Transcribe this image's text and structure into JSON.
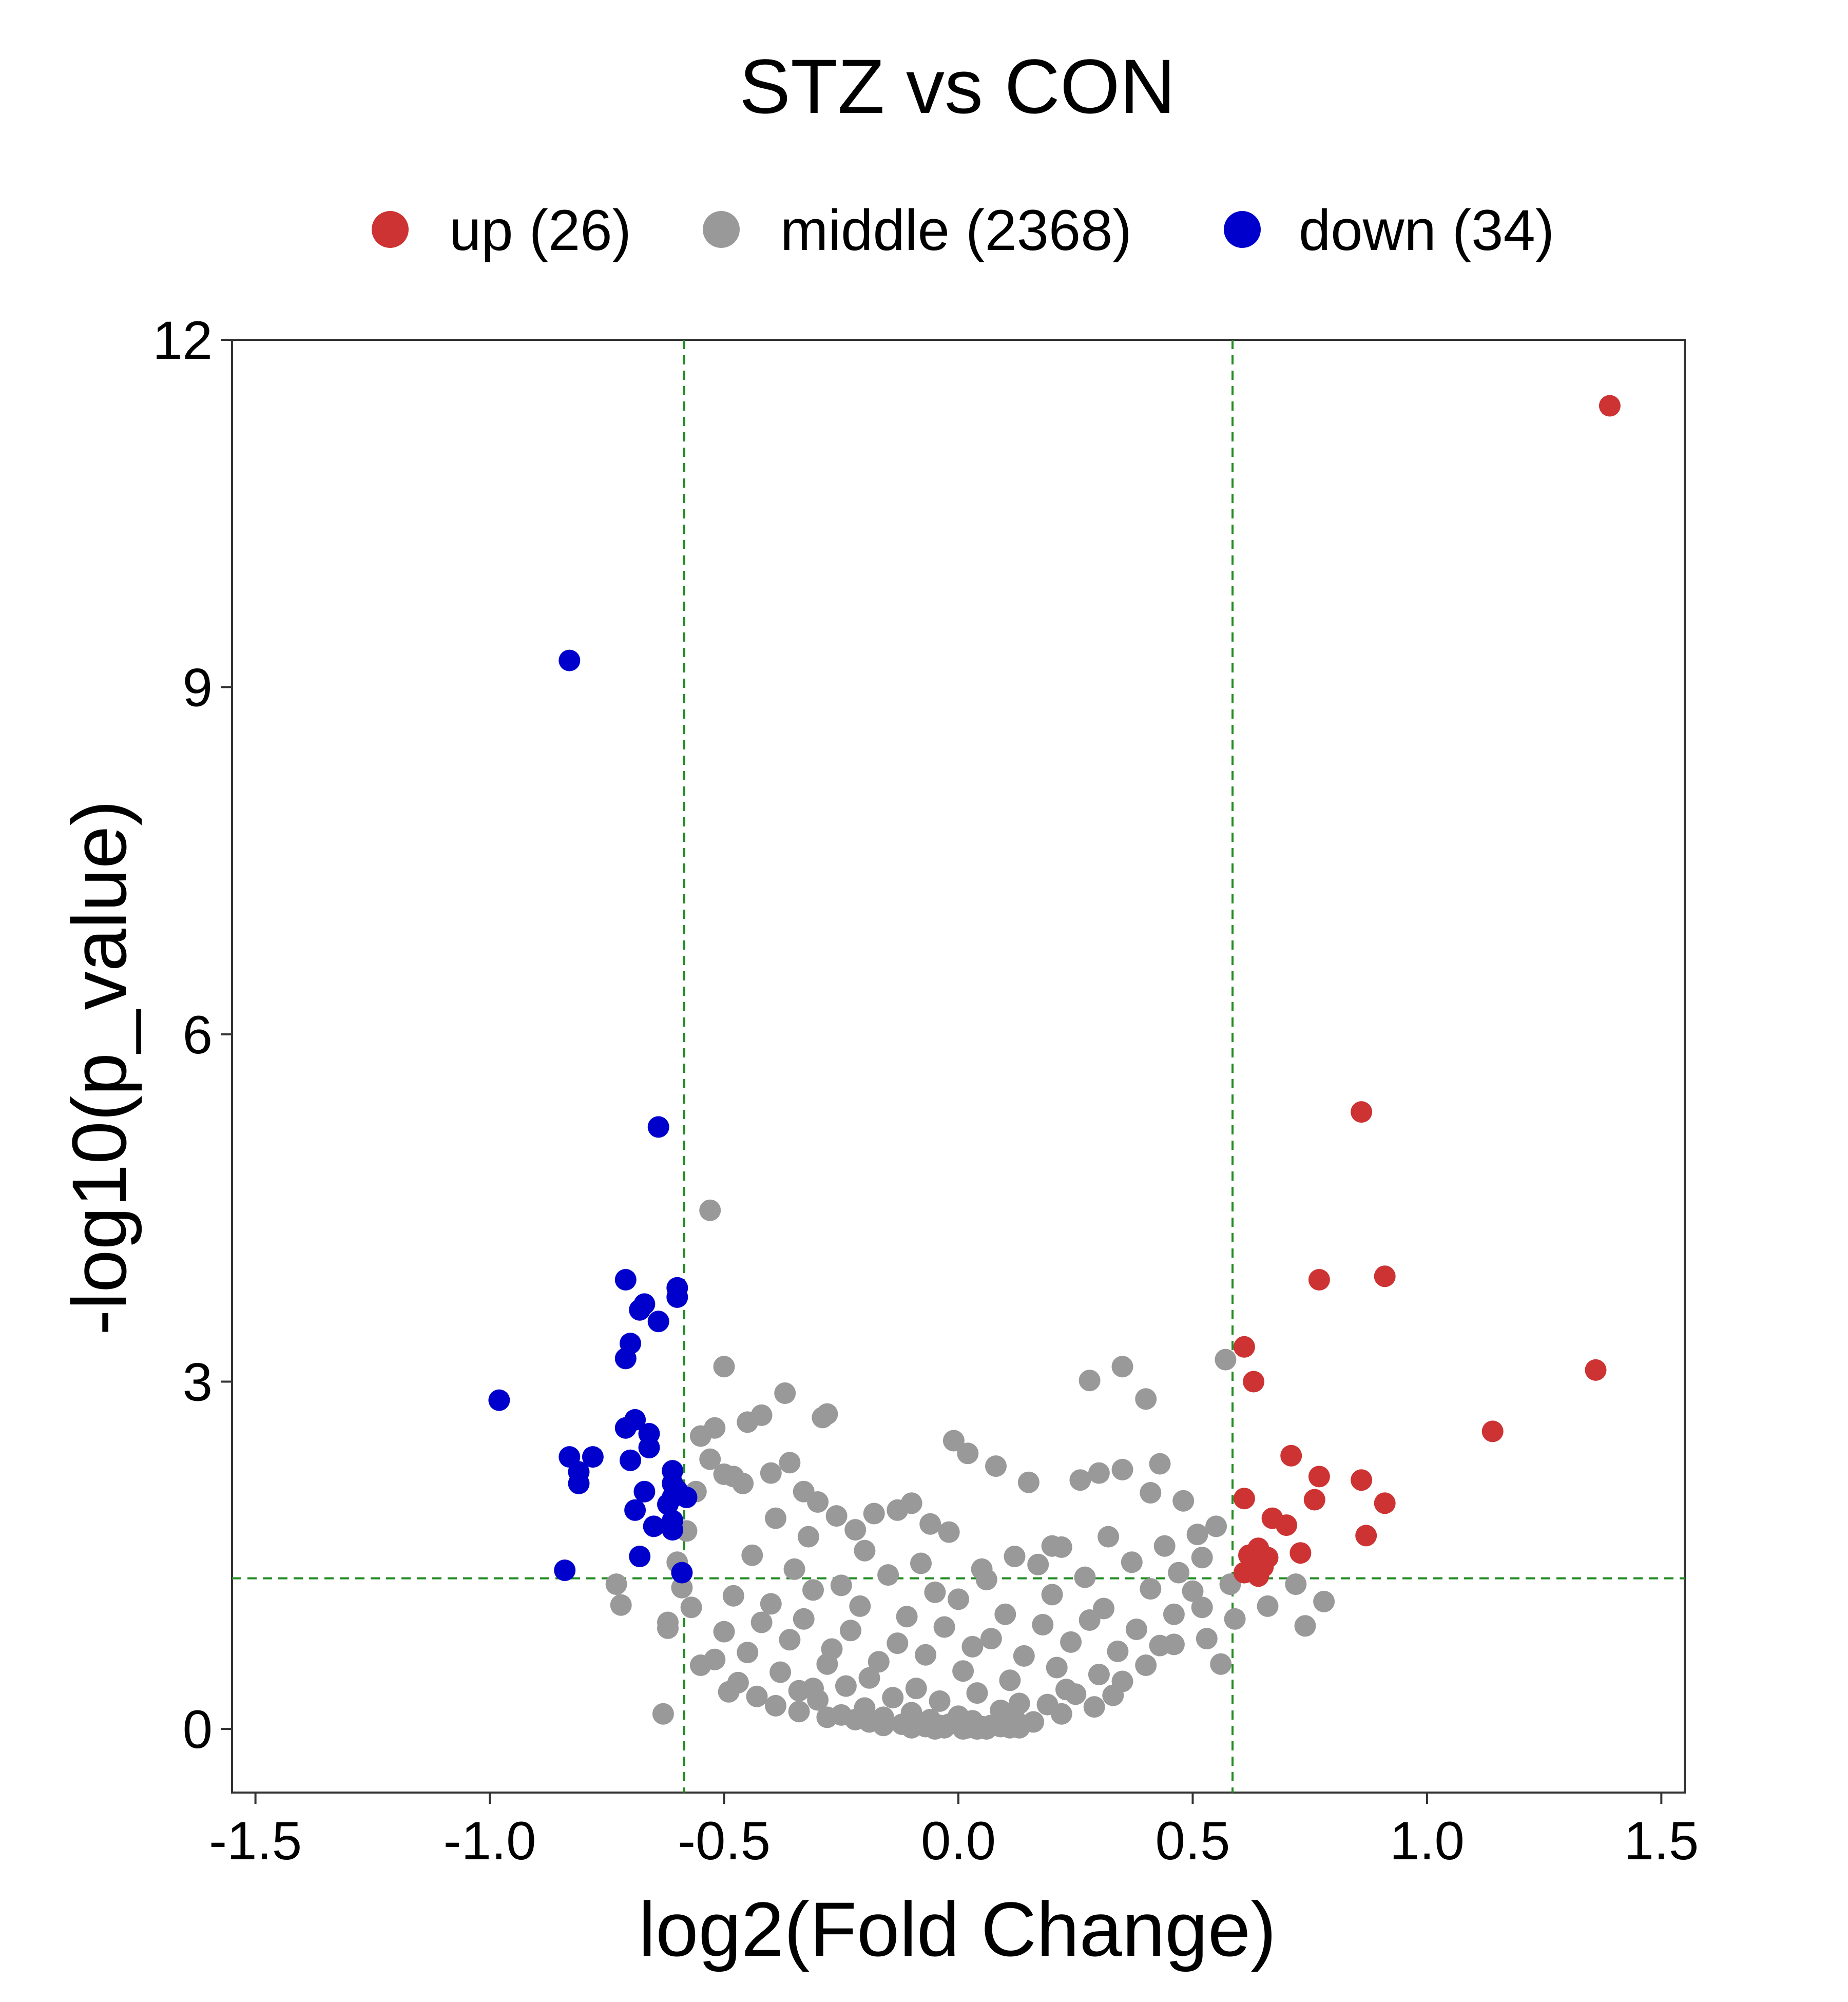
{
  "chart_data": {
    "type": "scatter",
    "title": "STZ vs CON",
    "xlabel": "log2(Fold Change)",
    "ylabel": "-log10(p_value)",
    "xlim": [
      -1.55,
      1.55
    ],
    "ylim": [
      -0.55,
      12
    ],
    "x_ticks": [
      -1.5,
      -1.0,
      -0.5,
      0.0,
      0.5,
      1.0,
      1.5
    ],
    "x_tick_labels": [
      "-1.5",
      "-1.0",
      "-0.5",
      "0.0",
      "0.5",
      "1.0",
      "1.5"
    ],
    "y_ticks": [
      0,
      3,
      6,
      9,
      12
    ],
    "y_tick_labels": [
      "0",
      "3",
      "6",
      "9",
      "12"
    ],
    "grid": false,
    "legend_position": "top",
    "thresholds": {
      "x": [
        -0.585,
        0.585
      ],
      "y": 1.301,
      "color": "#228b22",
      "style": "dashed"
    },
    "series": [
      {
        "name": "up (26)",
        "color": "#cd3333",
        "x": [
          1.39,
          1.36,
          0.86,
          0.91,
          0.77,
          0.61,
          0.63,
          1.14,
          0.71,
          0.77,
          0.86,
          0.61,
          0.76,
          0.91,
          0.67,
          0.7,
          0.87,
          0.64,
          0.73,
          0.62,
          0.66,
          0.63,
          0.65,
          0.62,
          0.61,
          0.64
        ],
        "y": [
          11.43,
          3.1,
          5.33,
          3.91,
          3.88,
          3.3,
          3.0,
          2.57,
          2.36,
          2.18,
          2.15,
          1.99,
          1.98,
          1.95,
          1.82,
          1.76,
          1.67,
          1.56,
          1.52,
          1.5,
          1.48,
          1.45,
          1.4,
          1.38,
          1.35,
          1.32
        ]
      },
      {
        "name": "middle (2368)",
        "color": "#999999",
        "x": [
          -0.53,
          -0.5,
          -0.37,
          -0.42,
          -0.45,
          -0.28,
          -0.29,
          -0.55,
          -0.52,
          -0.53,
          -0.5,
          -0.46,
          -0.4,
          -0.36,
          -0.33,
          -0.3,
          -0.26,
          -0.22,
          -0.18,
          -0.13,
          -0.1,
          -0.06,
          -0.02,
          -0.01,
          0.02,
          0.08,
          0.15,
          0.26,
          0.28,
          0.35,
          0.4,
          0.43,
          0.48,
          0.51,
          0.3,
          0.35,
          0.41,
          0.57,
          0.55,
          0.2,
          -0.48,
          -0.56,
          -0.59,
          -0.62,
          -0.73,
          -0.72,
          -0.6,
          -0.62,
          -0.63,
          0.59,
          0.66,
          0.72,
          0.78,
          0.74,
          -0.39,
          -0.32,
          -0.2,
          -0.08,
          0.05,
          0.12,
          0.22,
          0.32,
          0.44,
          0.52,
          -0.44,
          -0.35,
          -0.25,
          -0.15,
          -0.05,
          0.06,
          0.17,
          0.27,
          0.37,
          0.47,
          -0.48,
          -0.4,
          -0.31,
          -0.21,
          -0.11,
          0.0,
          0.1,
          0.2,
          0.31,
          0.41,
          0.5,
          -0.5,
          -0.42,
          -0.33,
          -0.23,
          -0.13,
          -0.03,
          0.07,
          0.18,
          0.28,
          0.38,
          0.46,
          -0.52,
          -0.45,
          -0.36,
          -0.27,
          -0.17,
          -0.07,
          0.03,
          0.14,
          0.24,
          0.34,
          0.43,
          0.53,
          -0.47,
          -0.38,
          -0.28,
          -0.19,
          -0.09,
          0.01,
          0.11,
          0.21,
          0.3,
          0.4,
          -0.43,
          -0.34,
          -0.24,
          -0.14,
          -0.04,
          0.04,
          0.13,
          0.23,
          0.33,
          -0.39,
          -0.3,
          -0.2,
          -0.1,
          0.0,
          0.09,
          0.19,
          0.29,
          -0.34,
          -0.25,
          -0.16,
          -0.06,
          0.03,
          0.12,
          0.22,
          -0.28,
          -0.19,
          -0.1,
          -0.02,
          0.07,
          0.16,
          -0.22,
          -0.12,
          -0.04,
          0.05,
          0.13,
          -0.16,
          -0.07,
          0.02,
          0.09,
          -0.1,
          -0.03,
          0.04,
          0.11,
          -0.05,
          0.01,
          0.06,
          -0.58,
          -0.57,
          -0.55,
          0.56,
          0.58,
          0.52,
          0.46,
          -0.49,
          0.35,
          -0.31,
          0.25
        ],
        "y": [
          4.48,
          3.13,
          2.9,
          2.71,
          2.65,
          2.72,
          2.69,
          2.53,
          2.6,
          2.33,
          2.2,
          2.12,
          2.21,
          2.3,
          2.05,
          1.96,
          1.84,
          1.72,
          1.86,
          1.89,
          1.95,
          1.77,
          1.7,
          2.49,
          2.38,
          2.27,
          2.13,
          2.15,
          3.01,
          3.13,
          2.85,
          2.29,
          1.97,
          1.68,
          2.21,
          2.24,
          2.04,
          3.19,
          1.75,
          1.58,
          2.18,
          2.05,
          1.22,
          0.92,
          1.25,
          1.07,
          1.44,
          0.87,
          0.13,
          0.95,
          1.06,
          1.25,
          1.1,
          0.89,
          1.82,
          1.66,
          1.54,
          1.43,
          1.38,
          1.49,
          1.57,
          1.66,
          1.58,
          1.48,
          1.5,
          1.38,
          1.24,
          1.33,
          1.18,
          1.29,
          1.42,
          1.31,
          1.44,
          1.35,
          1.15,
          1.08,
          1.2,
          1.06,
          0.97,
          1.12,
          0.99,
          1.16,
          1.04,
          1.21,
          1.19,
          0.84,
          0.92,
          0.95,
          0.85,
          0.74,
          0.88,
          0.78,
          0.9,
          0.94,
          0.86,
          0.99,
          0.6,
          0.66,
          0.77,
          0.69,
          0.58,
          0.64,
          0.71,
          0.63,
          0.75,
          0.67,
          0.72,
          0.78,
          0.4,
          0.49,
          0.56,
          0.44,
          0.35,
          0.5,
          0.42,
          0.53,
          0.47,
          0.55,
          0.28,
          0.33,
          0.37,
          0.27,
          0.24,
          0.31,
          0.22,
          0.34,
          0.29,
          0.2,
          0.25,
          0.18,
          0.14,
          0.11,
          0.16,
          0.21,
          0.19,
          0.15,
          0.12,
          0.1,
          0.08,
          0.07,
          0.09,
          0.13,
          0.1,
          0.06,
          0.05,
          0.04,
          0.03,
          0.06,
          0.08,
          0.04,
          0.03,
          0.02,
          0.01,
          0.03,
          0.02,
          0.01,
          0.02,
          0.01,
          0.01,
          0.0,
          0.01,
          0.0,
          0.0,
          0.0,
          1.71,
          1.05,
          0.55,
          0.56,
          1.25,
          1.05,
          0.73,
          0.32,
          0.41,
          0.35,
          0.3
        ]
      },
      {
        "name": "down (34)",
        "color": "#0000cd",
        "x": [
          -0.83,
          -0.64,
          -0.71,
          -0.6,
          -0.6,
          -0.67,
          -0.68,
          -0.64,
          -0.7,
          -0.71,
          -0.98,
          -0.69,
          -0.71,
          -0.66,
          -0.66,
          -0.83,
          -0.78,
          -0.7,
          -0.61,
          -0.81,
          -0.61,
          -0.81,
          -0.6,
          -0.61,
          -0.67,
          -0.58,
          -0.62,
          -0.69,
          -0.61,
          -0.65,
          -0.61,
          -0.68,
          -0.59,
          -0.84
        ],
        "y": [
          9.23,
          5.2,
          3.88,
          3.81,
          3.73,
          3.67,
          3.62,
          3.52,
          3.33,
          3.2,
          2.84,
          2.67,
          2.6,
          2.55,
          2.43,
          2.35,
          2.35,
          2.32,
          2.23,
          2.22,
          2.12,
          2.12,
          2.06,
          2.0,
          2.05,
          2.0,
          1.94,
          1.89,
          1.8,
          1.75,
          1.72,
          1.49,
          1.35,
          1.37
        ]
      }
    ]
  }
}
